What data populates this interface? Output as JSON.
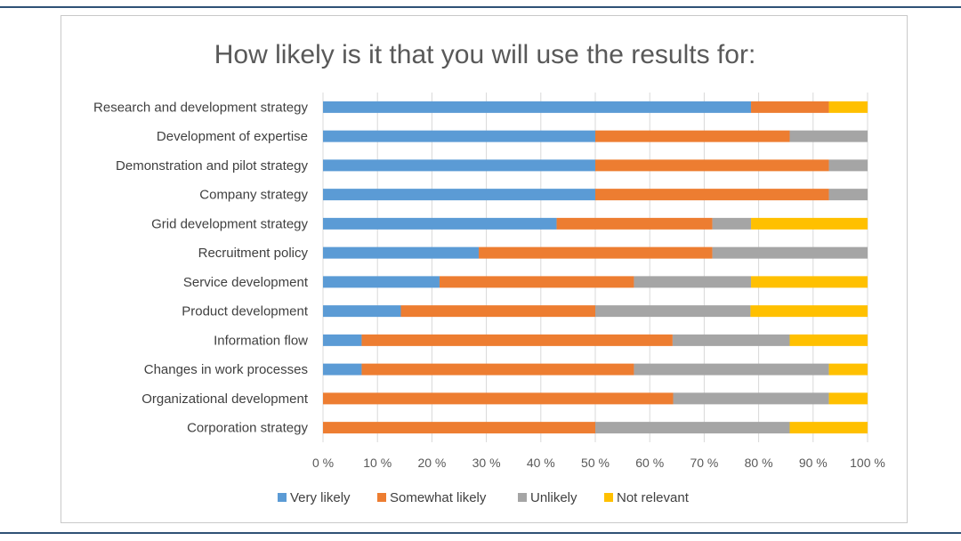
{
  "chart_data": {
    "type": "bar",
    "orientation": "horizontal",
    "stacked": true,
    "percent_stacked": true,
    "title": "How likely is it that you will use the results for:",
    "categories": [
      "Research and development strategy",
      "Development of expertise",
      "Demonstration and pilot strategy",
      "Company strategy",
      "Grid development strategy",
      "Recruitment policy",
      "Service development",
      "Product development",
      "Information flow",
      "Changes in work processes",
      "Organizational development",
      "Corporation strategy"
    ],
    "series": [
      {
        "name": "Very likely",
        "color": "#5b9bd5",
        "values": [
          78.6,
          50.0,
          50.0,
          50.0,
          42.9,
          28.6,
          21.4,
          14.3,
          7.1,
          7.1,
          0.0,
          0.0
        ]
      },
      {
        "name": "Somewhat likely",
        "color": "#ed7d31",
        "values": [
          14.3,
          35.7,
          42.9,
          42.9,
          28.6,
          42.9,
          35.7,
          35.7,
          57.1,
          50.0,
          64.3,
          50.0
        ]
      },
      {
        "name": "Unlikely",
        "color": "#a5a5a5",
        "values": [
          0.0,
          14.3,
          7.1,
          7.1,
          7.1,
          28.5,
          21.5,
          28.5,
          21.5,
          35.8,
          28.6,
          35.7
        ]
      },
      {
        "name": "Not relevant",
        "color": "#ffc000",
        "values": [
          7.1,
          0.0,
          0.0,
          0.0,
          21.4,
          0.0,
          21.4,
          21.5,
          14.3,
          7.1,
          7.1,
          14.3
        ]
      }
    ],
    "xlim": [
      0,
      100
    ],
    "xticks": [
      "0 %",
      "10 %",
      "20 %",
      "30 %",
      "40 %",
      "50 %",
      "60 %",
      "70 %",
      "80 %",
      "90 %",
      "100 %"
    ],
    "grid": "vertical",
    "legend": "bottom"
  }
}
